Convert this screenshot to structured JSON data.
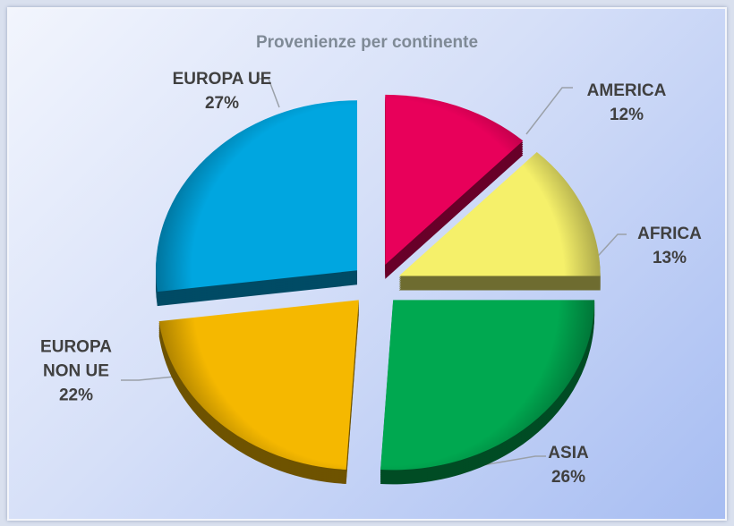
{
  "chart_data": {
    "type": "pie",
    "title": "Provenienze per continente",
    "categories": [
      "AMERICA",
      "AFRICA",
      "ASIA",
      "EUROPA NON UE",
      "EUROPA UE"
    ],
    "values": [
      12,
      13,
      26,
      22,
      27
    ],
    "value_labels": [
      "12%",
      "13%",
      "26%",
      "22%",
      "27%"
    ],
    "colors": [
      "#e8005a",
      "#f5f06a",
      "#00a850",
      "#f5b800",
      "#00a6e0"
    ]
  }
}
